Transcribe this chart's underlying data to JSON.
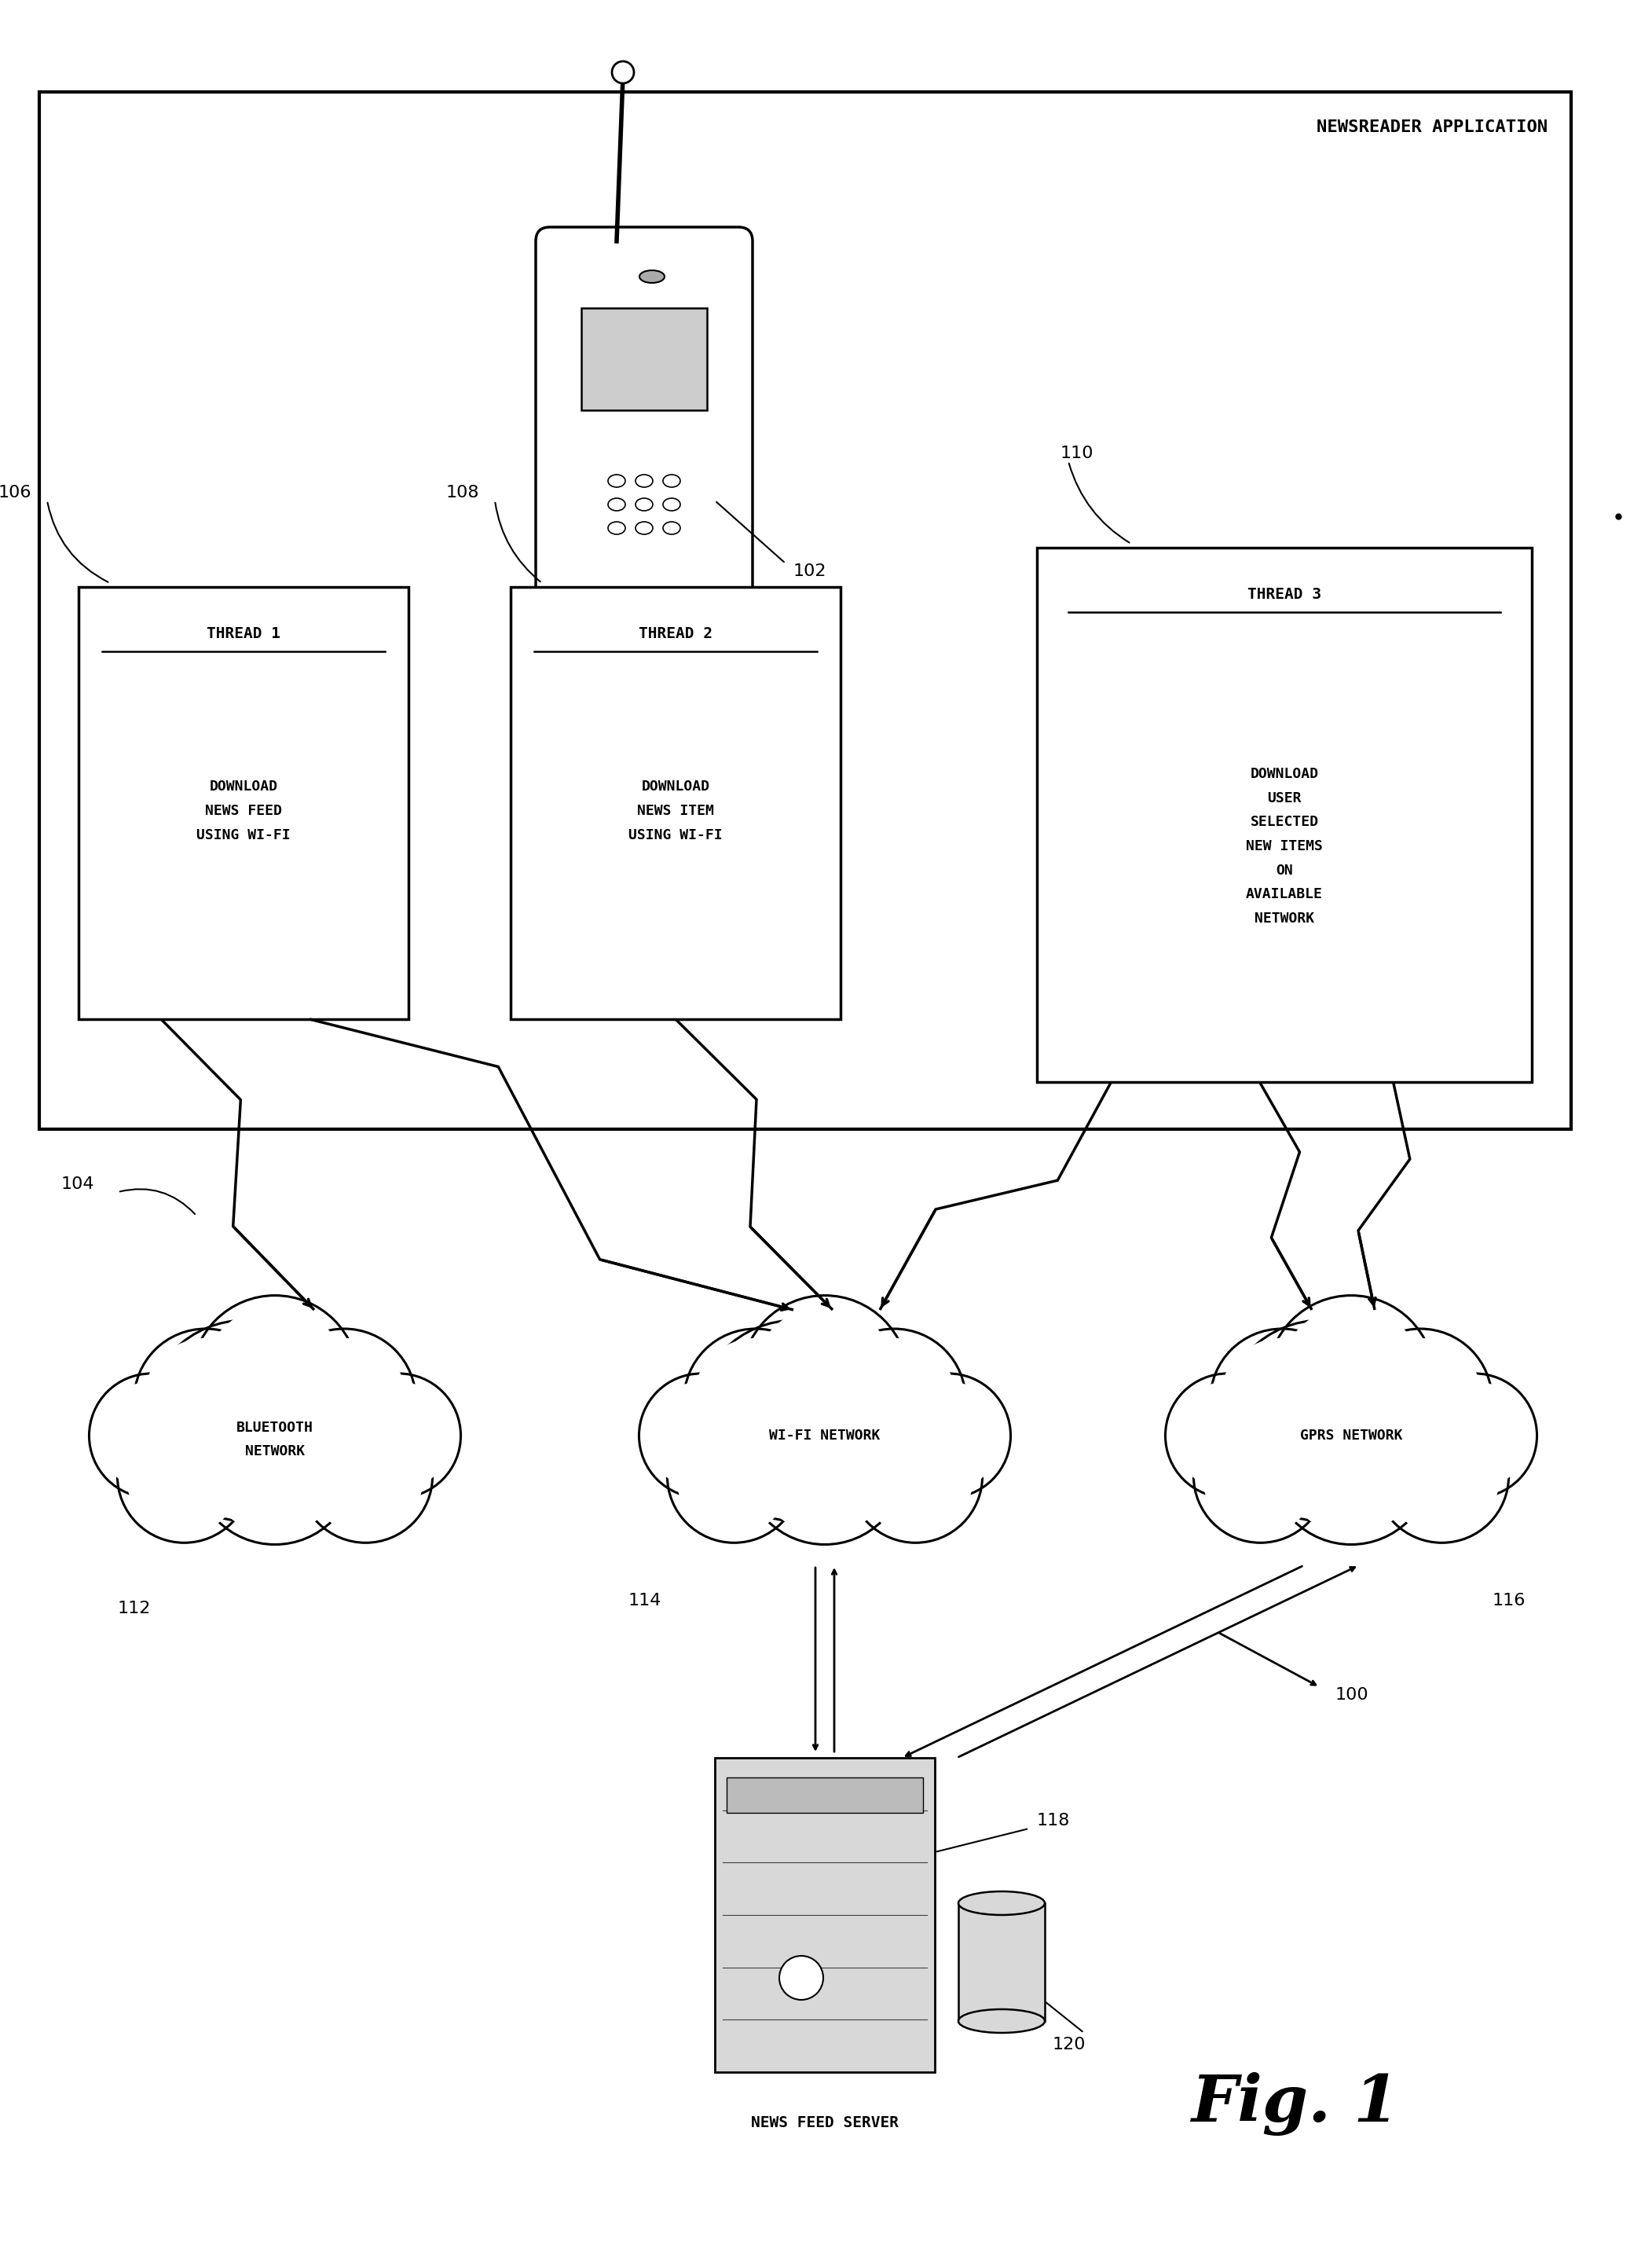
{
  "bg_color": "#ffffff",
  "fig_width": 21.03,
  "fig_height": 28.57,
  "labels": {
    "newsreader_app": "NEWSREADER APPLICATION",
    "thread1_title": "THREAD 1",
    "thread1_body": "DOWNLOAD\nNEWS FEED\nUSING WI-FI",
    "thread2_title": "THREAD 2",
    "thread2_body": "DOWNLOAD\nNEWS ITEM\nUSING WI-FI",
    "thread3_title": "THREAD 3",
    "thread3_body": "DOWNLOAD\nUSER\nSELECTED\nNEW ITEMS\nON\nAVAILABLE\nNETWORK",
    "bluetooth": "BLUETOOTH\nNETWORK",
    "wifi": "WI-FI NETWORK",
    "gprs": "GPRS NETWORK",
    "server": "NEWS FEED SERVER",
    "fig_label": "Fig. 1",
    "ref_102": "102",
    "ref_104": "104",
    "ref_106": "106",
    "ref_108": "108",
    "ref_110": "110",
    "ref_112": "112",
    "ref_114": "114",
    "ref_116": "116",
    "ref_118": "118",
    "ref_120": "120",
    "ref_100": "100"
  },
  "line_color": "#000000",
  "text_color": "#000000"
}
